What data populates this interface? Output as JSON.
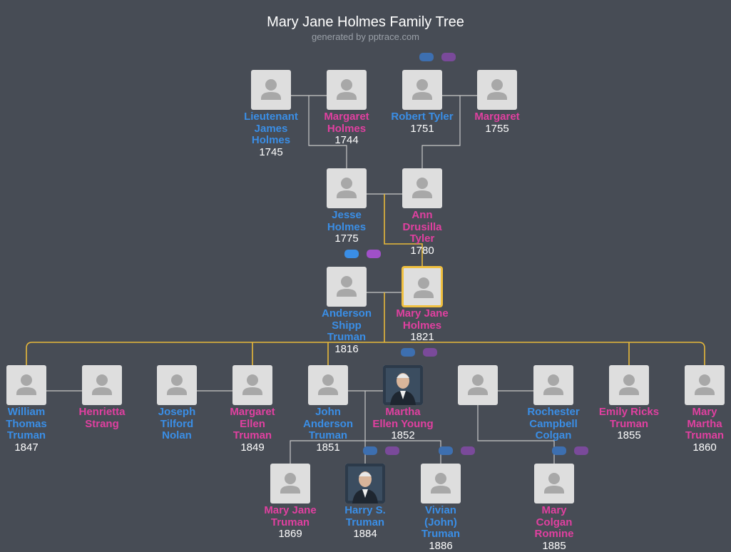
{
  "header": {
    "title": "Mary Jane Holmes Family Tree",
    "subtitle": "generated by pptrace.com"
  },
  "nodes": [
    {
      "name": "Lieutenant James Holmes",
      "year": "1745",
      "sex": "M",
      "photo": false
    },
    {
      "name": "Margaret Holmes",
      "year": "1744",
      "sex": "F",
      "photo": false
    },
    {
      "name": "Robert Tyler",
      "year": "1751",
      "sex": "M",
      "photo": false
    },
    {
      "name": "Margaret",
      "year": "1755",
      "sex": "F",
      "photo": false
    },
    {
      "name": "Jesse Holmes",
      "year": "1775",
      "sex": "M",
      "photo": false
    },
    {
      "name": "Ann Drusilla Tyler",
      "year": "1780",
      "sex": "F",
      "photo": false
    },
    {
      "name": "Anderson Shipp Truman",
      "year": "1816",
      "sex": "M",
      "photo": false
    },
    {
      "name": "Mary Jane Holmes",
      "year": "1821",
      "sex": "F",
      "photo": false,
      "selected": true
    },
    {
      "name": "William Thomas Truman",
      "year": "1847",
      "sex": "M",
      "photo": false
    },
    {
      "name": "Henrietta Strang",
      "sex": "F",
      "photo": false
    },
    {
      "name": "Joseph Tilford Nolan",
      "sex": "M",
      "photo": false
    },
    {
      "name": "Margaret Ellen Truman",
      "year": "1849",
      "sex": "F",
      "photo": false
    },
    {
      "name": "John Anderson Truman",
      "year": "1851",
      "sex": "M",
      "photo": false
    },
    {
      "name": "Martha Ellen Young",
      "year": "1852",
      "sex": "F",
      "photo": true
    },
    {
      "photo": false
    },
    {
      "name": "Rochester Campbell Colgan",
      "sex": "M",
      "photo": false
    },
    {
      "name": "Emily Ricks Truman",
      "year": "1855",
      "sex": "F",
      "photo": false
    },
    {
      "name": "Mary Martha Truman",
      "year": "1860",
      "sex": "F",
      "photo": false
    },
    {
      "name": "Mary Jane Truman",
      "year": "1869",
      "sex": "F",
      "photo": false
    },
    {
      "name": "Harry S. Truman",
      "year": "1884",
      "sex": "M",
      "photo": true
    },
    {
      "name": "Vivian (John) Truman",
      "year": "1886",
      "sex": "M",
      "photo": false
    },
    {
      "name": "Mary Colgan Romine",
      "year": "1885",
      "sex": "F",
      "photo": false
    }
  ]
}
